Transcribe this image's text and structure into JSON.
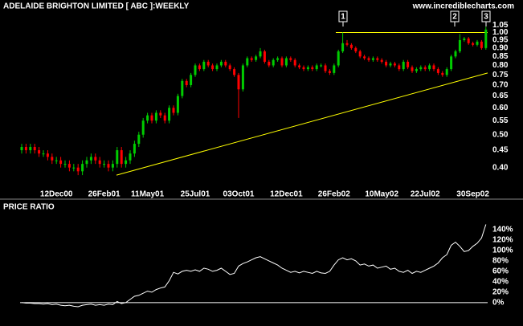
{
  "chart_data": [
    {
      "type": "candlestick",
      "title": "ADELAIDE BRIGHTON LIMITED [ ABC ]:WEEKLY",
      "source": "www.incrediblecharts.com",
      "annotations": [
        "1",
        "2",
        "3"
      ],
      "categories": [
        null,
        null,
        null,
        null,
        null,
        null,
        null,
        null,
        "12Dec00",
        null,
        null,
        null,
        null,
        null,
        null,
        null,
        null,
        null,
        null,
        "26Feb01",
        null,
        null,
        null,
        null,
        null,
        null,
        null,
        null,
        null,
        "11May01",
        null,
        null,
        null,
        null,
        null,
        null,
        null,
        null,
        null,
        null,
        "25Jul01",
        null,
        null,
        null,
        null,
        null,
        null,
        null,
        null,
        null,
        "03Oct01",
        null,
        null,
        null,
        null,
        null,
        null,
        null,
        null,
        null,
        null,
        "12Dec01",
        null,
        null,
        null,
        null,
        null,
        null,
        null,
        null,
        null,
        null,
        "26Feb02",
        null,
        null,
        null,
        null,
        null,
        null,
        null,
        null,
        null,
        null,
        "10May02",
        null,
        null,
        null,
        null,
        null,
        null,
        null,
        null,
        null,
        "22Jul02",
        null,
        null,
        null,
        null,
        null,
        null,
        null,
        null,
        null,
        null,
        "30Sep02",
        null,
        null,
        null
      ],
      "open": [
        0.45,
        0.46,
        0.45,
        0.46,
        0.45,
        0.44,
        0.44,
        0.43,
        0.42,
        0.42,
        0.41,
        0.41,
        0.4,
        0.4,
        0.39,
        0.41,
        0.42,
        0.43,
        0.42,
        0.41,
        0.41,
        0.4,
        0.41,
        0.45,
        0.41,
        0.42,
        0.44,
        0.47,
        0.5,
        0.55,
        0.57,
        0.55,
        0.58,
        0.57,
        0.55,
        0.6,
        0.58,
        0.65,
        0.72,
        0.7,
        0.75,
        0.8,
        0.78,
        0.82,
        0.8,
        0.78,
        0.8,
        0.82,
        0.8,
        0.78,
        0.75,
        0.68,
        0.8,
        0.84,
        0.83,
        0.85,
        0.88,
        0.82,
        0.8,
        0.83,
        0.84,
        0.8,
        0.84,
        0.83,
        0.8,
        0.79,
        0.78,
        0.79,
        0.78,
        0.8,
        0.8,
        0.77,
        0.76,
        0.8,
        0.88,
        0.93,
        0.92,
        0.9,
        0.88,
        0.85,
        0.84,
        0.83,
        0.84,
        0.83,
        0.82,
        0.8,
        0.81,
        0.8,
        0.78,
        0.82,
        0.79,
        0.77,
        0.78,
        0.79,
        0.78,
        0.8,
        0.78,
        0.76,
        0.75,
        0.78,
        0.85,
        0.88,
        0.95,
        0.96,
        0.93,
        0.92,
        0.94,
        0.9
      ],
      "high": [
        0.47,
        0.47,
        0.47,
        0.47,
        0.46,
        0.45,
        0.45,
        0.44,
        0.43,
        0.43,
        0.42,
        0.42,
        0.41,
        0.41,
        0.42,
        0.43,
        0.44,
        0.44,
        0.43,
        0.42,
        0.42,
        0.42,
        0.46,
        0.46,
        0.43,
        0.45,
        0.48,
        0.51,
        0.56,
        0.58,
        0.58,
        0.59,
        0.59,
        0.58,
        0.61,
        0.61,
        0.66,
        0.73,
        0.73,
        0.76,
        0.81,
        0.81,
        0.83,
        0.83,
        0.81,
        0.81,
        0.83,
        0.83,
        0.81,
        0.79,
        0.76,
        0.81,
        0.85,
        0.85,
        0.86,
        0.9,
        0.89,
        0.83,
        0.84,
        0.85,
        0.85,
        0.85,
        0.85,
        0.84,
        0.81,
        0.8,
        0.8,
        0.8,
        0.81,
        0.81,
        0.81,
        0.78,
        0.81,
        0.89,
        1.0,
        0.95,
        0.93,
        0.91,
        0.89,
        0.86,
        0.85,
        0.85,
        0.85,
        0.84,
        0.83,
        0.82,
        0.82,
        0.81,
        0.83,
        0.83,
        0.8,
        0.79,
        0.8,
        0.8,
        0.81,
        0.81,
        0.79,
        0.77,
        0.79,
        0.86,
        0.89,
        0.99,
        0.97,
        0.97,
        0.94,
        0.95,
        0.95,
        1.04
      ],
      "low": [
        0.44,
        0.44,
        0.44,
        0.44,
        0.43,
        0.43,
        0.42,
        0.41,
        0.41,
        0.4,
        0.4,
        0.39,
        0.39,
        0.38,
        0.38,
        0.4,
        0.41,
        0.41,
        0.4,
        0.4,
        0.39,
        0.39,
        0.4,
        0.4,
        0.4,
        0.41,
        0.43,
        0.46,
        0.49,
        0.54,
        0.54,
        0.54,
        0.56,
        0.54,
        0.54,
        0.57,
        0.57,
        0.64,
        0.69,
        0.69,
        0.74,
        0.77,
        0.77,
        0.79,
        0.77,
        0.77,
        0.79,
        0.79,
        0.77,
        0.74,
        0.56,
        0.67,
        0.79,
        0.82,
        0.82,
        0.84,
        0.81,
        0.79,
        0.79,
        0.82,
        0.79,
        0.79,
        0.82,
        0.79,
        0.78,
        0.77,
        0.77,
        0.77,
        0.77,
        0.79,
        0.76,
        0.75,
        0.75,
        0.79,
        0.87,
        0.91,
        0.89,
        0.87,
        0.84,
        0.83,
        0.82,
        0.82,
        0.82,
        0.81,
        0.79,
        0.79,
        0.79,
        0.77,
        0.77,
        0.78,
        0.76,
        0.76,
        0.77,
        0.77,
        0.77,
        0.77,
        0.75,
        0.74,
        0.74,
        0.77,
        0.84,
        0.87,
        0.94,
        0.92,
        0.91,
        0.91,
        0.89,
        0.89
      ],
      "close": [
        0.46,
        0.45,
        0.46,
        0.45,
        0.44,
        0.44,
        0.43,
        0.42,
        0.42,
        0.41,
        0.41,
        0.4,
        0.4,
        0.39,
        0.41,
        0.42,
        0.43,
        0.42,
        0.41,
        0.41,
        0.4,
        0.41,
        0.45,
        0.41,
        0.42,
        0.44,
        0.47,
        0.5,
        0.55,
        0.57,
        0.55,
        0.58,
        0.57,
        0.55,
        0.6,
        0.58,
        0.65,
        0.72,
        0.7,
        0.75,
        0.8,
        0.78,
        0.82,
        0.8,
        0.78,
        0.8,
        0.82,
        0.8,
        0.78,
        0.75,
        0.68,
        0.8,
        0.84,
        0.83,
        0.85,
        0.88,
        0.82,
        0.8,
        0.83,
        0.84,
        0.8,
        0.84,
        0.83,
        0.8,
        0.79,
        0.78,
        0.79,
        0.78,
        0.8,
        0.8,
        0.77,
        0.76,
        0.8,
        0.88,
        0.93,
        0.92,
        0.9,
        0.88,
        0.85,
        0.84,
        0.83,
        0.84,
        0.83,
        0.82,
        0.8,
        0.81,
        0.8,
        0.78,
        0.82,
        0.79,
        0.77,
        0.78,
        0.79,
        0.78,
        0.8,
        0.78,
        0.76,
        0.75,
        0.78,
        0.85,
        0.88,
        0.95,
        0.96,
        0.93,
        0.92,
        0.94,
        0.9,
        1.02
      ],
      "up_color": "#00cc00",
      "down_color": "#ff0000",
      "trendlines": [
        {
          "from": 0.38,
          "to": 0.76,
          "color": "#ffff00"
        },
        {
          "from": 1.0,
          "to": 1.0,
          "color": "#ffff00"
        }
      ],
      "log_scale": true,
      "ylim": [
        0.37,
        1.1
      ],
      "yticks": [
        {
          "value": 0.4,
          "label": "0.40"
        },
        0.45,
        {
          "value": 0.5,
          "label": "0.50"
        },
        0.55,
        {
          "value": 0.6,
          "label": "0.60"
        },
        0.65,
        {
          "value": 0.7,
          "label": "0.70"
        },
        0.75,
        {
          "value": 0.8,
          "label": "0.80"
        },
        0.85,
        {
          "value": 0.9,
          "label": "0.90"
        },
        0.95,
        {
          "value": 1.0,
          "label": "1.00"
        },
        1.05
      ]
    },
    {
      "type": "line",
      "title": "PRICE RATIO",
      "color": "#ffffff",
      "values": [
        0,
        -1,
        -1,
        -2,
        -2,
        -3,
        -2,
        -4,
        -3,
        -5,
        -6,
        -5,
        -7,
        -8,
        -5,
        -4,
        -3,
        -5,
        -4,
        -5,
        -3,
        -4,
        2,
        -2,
        0,
        6,
        12,
        14,
        18,
        22,
        20,
        25,
        28,
        30,
        42,
        58,
        55,
        60,
        62,
        60,
        63,
        60,
        66,
        64,
        60,
        62,
        66,
        60,
        54,
        56,
        70,
        75,
        78,
        82,
        86,
        88,
        84,
        80,
        76,
        72,
        66,
        62,
        58,
        60,
        57,
        60,
        58,
        56,
        60,
        57,
        56,
        60,
        72,
        82,
        86,
        82,
        84,
        80,
        72,
        74,
        70,
        72,
        66,
        68,
        70,
        64,
        66,
        60,
        58,
        62,
        56,
        60,
        58,
        62,
        66,
        70,
        76,
        86,
        92,
        110,
        116,
        108,
        98,
        100,
        108,
        114,
        124,
        150
      ],
      "ylim": [
        -28,
        177
      ],
      "yticks": [
        {
          "value": 0,
          "label": "0%"
        },
        {
          "value": 20,
          "label": "20%"
        },
        {
          "value": 40,
          "label": "40%"
        },
        {
          "value": 60,
          "label": "60%"
        },
        {
          "value": 80,
          "label": "80%"
        },
        {
          "value": 100,
          "label": "100%"
        },
        {
          "value": 120,
          "label": "120%"
        },
        {
          "value": 140,
          "label": "140%"
        }
      ]
    }
  ]
}
